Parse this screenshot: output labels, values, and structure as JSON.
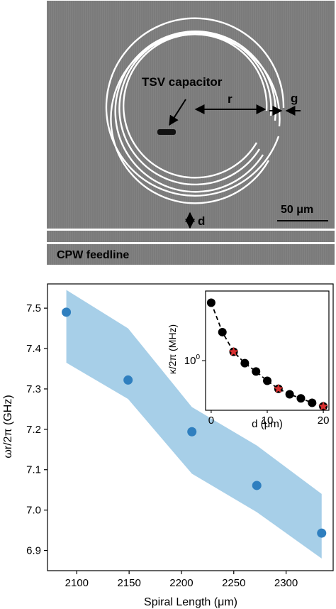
{
  "micrograph": {
    "component_label": "TSV capacitor",
    "radius_label": "r",
    "gap_label": "g",
    "distance_label": "d",
    "scale_bar_label": "50 μm",
    "feedline_label": "CPW feedline",
    "colors": {
      "background": "#7b7b7b",
      "metal": "#ffffff",
      "capacitor": "#111111"
    }
  },
  "chart_data": [
    {
      "type": "scatter",
      "title": "",
      "xlabel": "Spiral Length (μm)",
      "ylabel": "ωr/2π (GHz)",
      "xlim": [
        2072,
        2345
      ],
      "ylim": [
        6.85,
        7.56
      ],
      "x_ticks": [
        2100,
        2150,
        2200,
        2250,
        2300
      ],
      "y_ticks": [
        6.9,
        7.0,
        7.1,
        7.2,
        7.3,
        7.4,
        7.5
      ],
      "x_tick_labels": [
        "2100",
        "2150",
        "2200",
        "2250",
        "2300"
      ],
      "y_tick_labels": [
        "6.9",
        "7.0",
        "7.1",
        "7.2",
        "7.3",
        "7.4",
        "7.5"
      ],
      "grid": false,
      "series": [
        {
          "kind": "points",
          "color": "#2f7fbf",
          "points": [
            [
              2090,
              7.49
            ],
            [
              2149,
              7.322
            ],
            [
              2210,
              7.194
            ],
            [
              2272,
              7.061
            ],
            [
              2334,
              6.943
            ]
          ]
        },
        {
          "kind": "band",
          "color": "#a7cfe8",
          "x": [
            2090,
            2149,
            2210,
            2272,
            2334
          ],
          "upper": [
            7.545,
            7.45,
            7.255,
            7.16,
            7.04
          ],
          "lower": [
            7.365,
            7.275,
            7.09,
            6.995,
            6.88
          ]
        }
      ]
    },
    {
      "type": "line",
      "title": "",
      "xlabel": "d (μm)",
      "ylabel": "κ/2π (MHz)",
      "y_scale": "log",
      "xlim": [
        -1,
        21
      ],
      "ylim": [
        0.36,
        4.2
      ],
      "x_ticks": [
        0,
        10,
        20
      ],
      "x_tick_labels": [
        "0",
        "10",
        "20"
      ],
      "y_ticks": [
        1
      ],
      "y_tick_labels": [
        "10^0"
      ],
      "grid": false,
      "series": [
        {
          "kind": "markers+dashed",
          "color": "#000000",
          "x": [
            0,
            2,
            4,
            6,
            8,
            10,
            12,
            14,
            16,
            18,
            20
          ],
          "y": [
            3.3,
            1.8,
            1.2,
            0.95,
            0.8,
            0.66,
            0.56,
            0.5,
            0.46,
            0.42,
            0.39
          ]
        },
        {
          "kind": "stars",
          "color": "#d93030",
          "x": [
            4,
            12,
            20
          ],
          "y": [
            1.2,
            0.56,
            0.39
          ]
        }
      ]
    }
  ]
}
